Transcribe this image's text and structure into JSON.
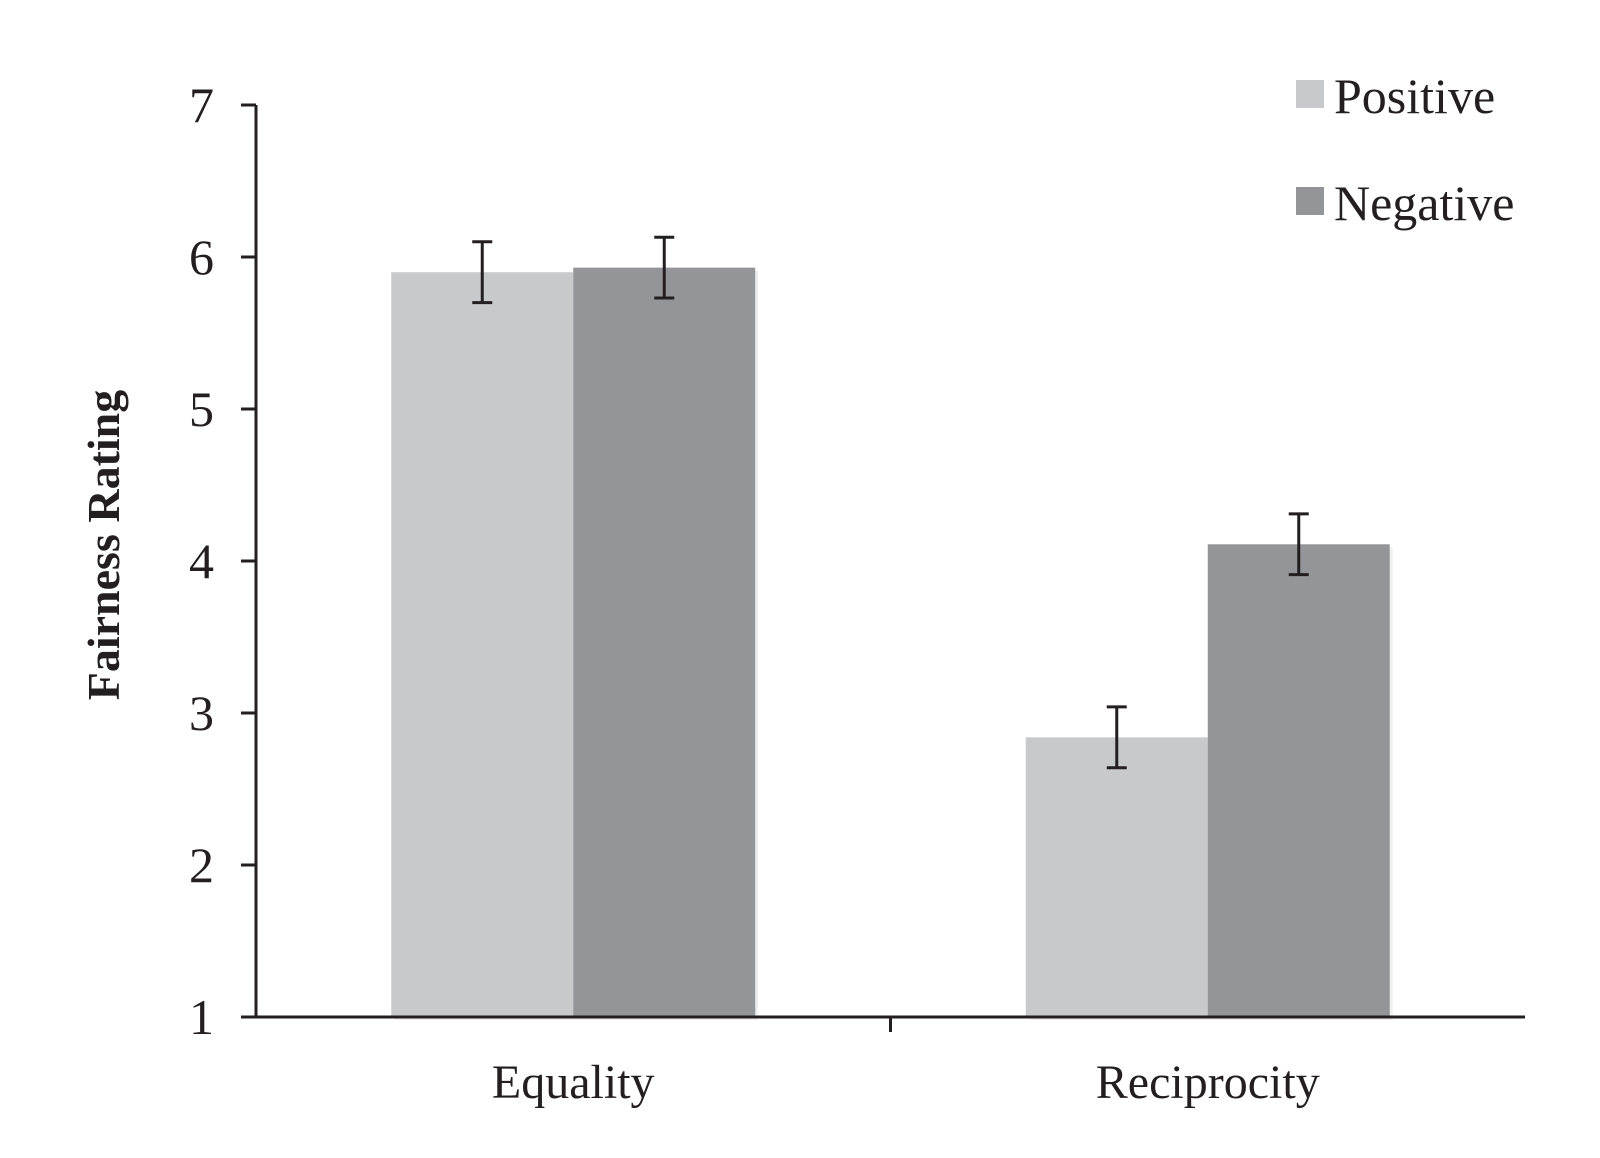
{
  "chart_data": {
    "type": "bar",
    "title": "",
    "xlabel": "",
    "ylabel": "Fairness Rating",
    "categories": [
      "Equality",
      "Reciprocity"
    ],
    "ylim": [
      1,
      7
    ],
    "yticks": [
      1,
      2,
      3,
      4,
      5,
      6,
      7
    ],
    "grid": false,
    "legend_position": "top-right",
    "series": [
      {
        "name": "Positive",
        "color": "#c8c9cb",
        "values": [
          5.9,
          2.84
        ],
        "error": [
          0.2,
          0.2
        ]
      },
      {
        "name": "Negative",
        "color": "#939598",
        "values": [
          5.93,
          4.11
        ],
        "error": [
          0.2,
          0.2
        ]
      }
    ]
  }
}
